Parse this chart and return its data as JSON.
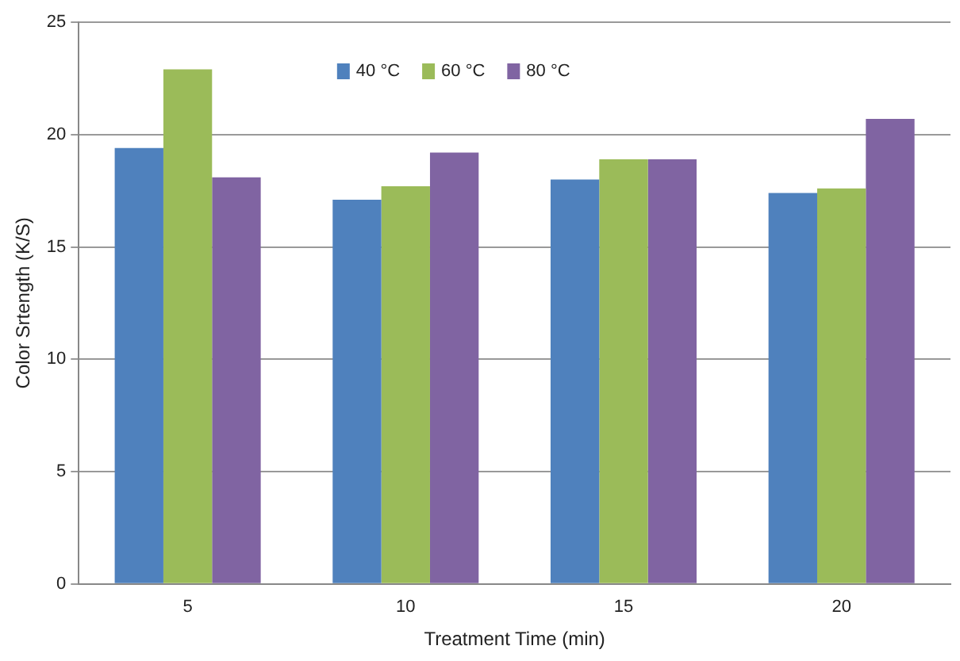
{
  "chart_data": {
    "type": "bar",
    "xlabel": "Treatment Time (min)",
    "ylabel": "Color Srtength (K/S)",
    "categories": [
      "5",
      "10",
      "15",
      "20"
    ],
    "series": [
      {
        "name": "40 °C",
        "color": "#4f81bd",
        "values": [
          19.4,
          17.1,
          18.0,
          17.4
        ]
      },
      {
        "name": "60 °C",
        "color": "#9bbb59",
        "values": [
          22.9,
          17.7,
          18.9,
          17.6
        ]
      },
      {
        "name": "80 °C",
        "color": "#8064a2",
        "values": [
          18.1,
          19.2,
          18.9,
          20.7
        ]
      }
    ],
    "ylim": [
      0,
      25
    ],
    "yticks": [
      0,
      5,
      10,
      15,
      20,
      25
    ],
    "grid": "y",
    "legend": "top"
  }
}
